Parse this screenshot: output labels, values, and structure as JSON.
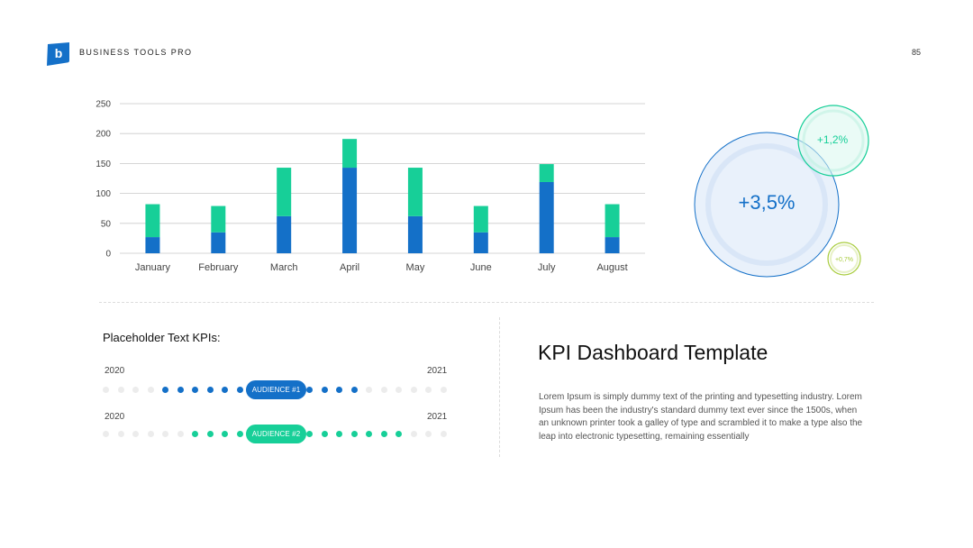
{
  "header": {
    "brand": "BUSINESS TOOLS PRO",
    "logo_letter": "b",
    "page_number": "85"
  },
  "colors": {
    "blue": "#1470c8",
    "green": "#17cf98",
    "lime": "#a8cc3d",
    "grid": "#c9c9c9"
  },
  "chart_data": {
    "type": "bar",
    "stacked": true,
    "categories": [
      "January",
      "February",
      "March",
      "April",
      "May",
      "June",
      "July",
      "August"
    ],
    "series": [
      {
        "values": [
          27,
          35,
          62,
          143,
          62,
          35,
          119,
          27
        ],
        "color": "#1470c8"
      },
      {
        "values": [
          55,
          44,
          81,
          48,
          81,
          44,
          30,
          55
        ],
        "color": "#17cf98"
      }
    ],
    "ylim": [
      0,
      250
    ],
    "yticks": [
      0,
      50,
      100,
      150,
      200,
      250
    ],
    "grid": true,
    "title": "",
    "xlabel": "",
    "ylabel": ""
  },
  "bubbles": {
    "main": "+3,5%",
    "secondary": "+1,2%",
    "small": "+0,7%"
  },
  "kpi": {
    "heading": "Placeholder Text KPIs:",
    "rows": [
      {
        "start_year": "2020",
        "end_year": "2021",
        "label": "AUDIENCE #1",
        "filled_left": [
          4,
          5,
          6,
          7,
          8,
          9
        ],
        "filled_right": [
          0,
          1,
          2,
          3
        ],
        "color": "#1470c8"
      },
      {
        "start_year": "2020",
        "end_year": "2021",
        "label": "AUDIENCE #2",
        "filled_left": [
          6,
          7,
          8,
          9
        ],
        "filled_right": [
          0,
          1,
          2,
          3,
          4,
          5,
          6
        ],
        "color": "#17cf98"
      }
    ]
  },
  "content": {
    "title": "KPI Dashboard Template",
    "body": "Lorem Ipsum is simply dummy text of the printing and typesetting industry. Lorem Ipsum has been the industry's standard dummy text ever since the 1500s, when an unknown printer took a galley of type and scrambled it to make a type also the leap into electronic typesetting, remaining essentially"
  }
}
